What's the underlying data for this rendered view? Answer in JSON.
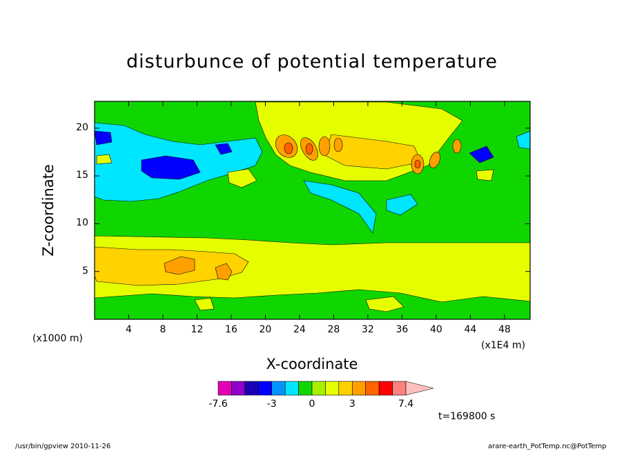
{
  "chart_data": {
    "type": "heatmap",
    "title": "disturbunce of potential temperature",
    "xlabel": "X-coordinate",
    "ylabel": "Z-coordinate",
    "x_scale_note": "(x1E4 m)",
    "y_scale_note": "(x1000 m)",
    "x_ticks": [
      4,
      8,
      12,
      16,
      20,
      24,
      28,
      32,
      36,
      40,
      44,
      48
    ],
    "y_ticks": [
      5,
      10,
      15,
      20
    ],
    "xlim": [
      0,
      51
    ],
    "ylim": [
      0,
      22.8
    ],
    "colorbar": {
      "labels": [
        "-7.6",
        "-3",
        "0",
        "3",
        "7.4"
      ],
      "colors": [
        "#e300b4",
        "#8f00c8",
        "#1a00b4",
        "#0000ff",
        "#0094ff",
        "#00e6ff",
        "#10d600",
        "#a6f000",
        "#e6ff00",
        "#ffd200",
        "#ffa000",
        "#ff6400",
        "#ff0000",
        "#ff8080",
        "#ffc0c0"
      ]
    },
    "time_label": "t=169800 s"
  },
  "footer": {
    "left": "/usr/bin/gpview   2010-11-26",
    "right": "arare-earth_PotTemp.nc@PotTemp"
  }
}
